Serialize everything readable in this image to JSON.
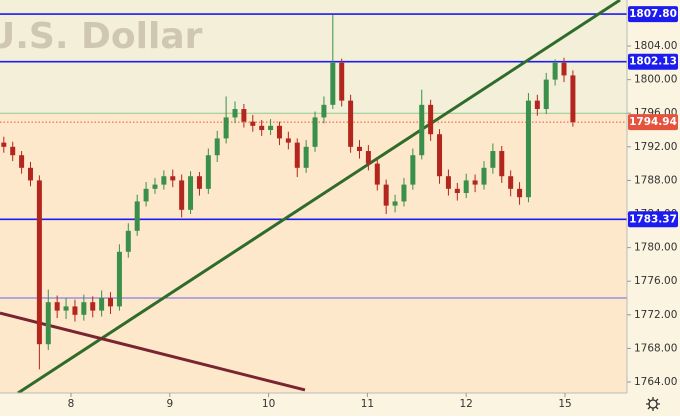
{
  "chart_data": {
    "type": "candlestick",
    "title": "U.S. Dollar",
    "up_color": "#3a8f4a",
    "down_color": "#b3261e",
    "x": [
      0.32,
      0.41,
      0.5,
      0.59,
      0.68,
      0.77,
      0.86,
      0.95,
      1.04,
      1.13,
      1.22,
      1.31,
      1.4,
      1.49,
      1.58,
      1.67,
      1.76,
      1.85,
      1.94,
      2.03,
      2.12,
      2.21,
      2.3,
      2.39,
      2.48,
      2.57,
      2.66,
      2.75,
      2.84,
      2.93,
      3.02,
      3.11,
      3.2,
      3.29,
      3.38,
      3.47,
      3.56,
      3.65,
      3.74,
      3.83,
      3.92,
      4.01,
      4.1,
      4.19,
      4.28,
      4.37,
      4.46,
      4.55,
      4.64,
      4.73,
      4.82,
      4.91,
      5.0,
      5.09,
      5.18,
      5.27,
      5.36,
      5.45,
      5.54,
      5.63,
      5.72,
      5.81,
      5.9,
      5.99,
      6.08
    ],
    "open": [
      1792.5,
      1792.0,
      1791.0,
      1789.5,
      1788.0,
      1768.5,
      1773.5,
      1772.5,
      1773.0,
      1772.0,
      1773.5,
      1772.5,
      1774.0,
      1773.0,
      1779.5,
      1782.0,
      1785.5,
      1787.0,
      1787.5,
      1788.5,
      1788.0,
      1784.5,
      1788.5,
      1787.0,
      1791.0,
      1793.0,
      1795.5,
      1796.5,
      1795.0,
      1794.5,
      1794.0,
      1794.5,
      1793.0,
      1792.5,
      1789.5,
      1792.0,
      1795.5,
      1797.0,
      1802.0,
      1797.5,
      1792.0,
      1791.5,
      1790.0,
      1787.5,
      1785.0,
      1785.5,
      1787.5,
      1791.0,
      1797.0,
      1793.5,
      1788.5,
      1787.0,
      1786.5,
      1788.0,
      1787.5,
      1789.5,
      1791.5,
      1788.5,
      1787.0,
      1786.0,
      1797.5,
      1796.5,
      1800.0,
      1802.0,
      1800.5
    ],
    "high": [
      1793.2,
      1792.6,
      1791.5,
      1790.2,
      1788.6,
      1775.0,
      1774.3,
      1774.0,
      1773.8,
      1774.4,
      1774.2,
      1774.9,
      1774.7,
      1780.4,
      1782.9,
      1786.3,
      1787.8,
      1788.3,
      1789.2,
      1789.3,
      1788.7,
      1789.1,
      1789.0,
      1791.8,
      1793.9,
      1798.0,
      1797.4,
      1797.1,
      1795.8,
      1795.2,
      1795.3,
      1795.0,
      1793.8,
      1793.0,
      1792.8,
      1796.2,
      1798.0,
      1807.7,
      1802.5,
      1798.2,
      1792.8,
      1792.2,
      1790.6,
      1788.1,
      1786.3,
      1788.3,
      1791.8,
      1798.8,
      1797.6,
      1794.1,
      1789.3,
      1787.7,
      1788.8,
      1788.7,
      1790.3,
      1792.4,
      1792.1,
      1789.2,
      1787.8,
      1798.4,
      1798.2,
      1800.8,
      1802.4,
      1802.6,
      1801.1
    ],
    "low": [
      1791.3,
      1790.3,
      1788.8,
      1787.3,
      1765.5,
      1767.8,
      1771.6,
      1771.5,
      1771.2,
      1771.3,
      1771.7,
      1771.8,
      1772.1,
      1772.5,
      1778.8,
      1781.4,
      1784.9,
      1786.4,
      1786.9,
      1787.2,
      1783.6,
      1784.0,
      1786.2,
      1786.4,
      1790.2,
      1792.4,
      1794.8,
      1794.3,
      1793.8,
      1793.3,
      1793.4,
      1792.2,
      1791.7,
      1788.4,
      1788.9,
      1791.4,
      1794.8,
      1796.5,
      1796.8,
      1791.3,
      1790.6,
      1789.2,
      1786.8,
      1784.0,
      1784.2,
      1784.9,
      1786.9,
      1790.5,
      1792.7,
      1787.6,
      1786.2,
      1785.6,
      1785.9,
      1786.6,
      1786.9,
      1788.8,
      1787.7,
      1786.1,
      1785.1,
      1785.4,
      1795.7,
      1795.9,
      1799.3,
      1799.7,
      1794.4
    ],
    "close": [
      1792.0,
      1791.0,
      1789.5,
      1788.0,
      1768.5,
      1773.5,
      1772.5,
      1773.0,
      1772.0,
      1773.5,
      1772.5,
      1774.0,
      1773.0,
      1779.5,
      1782.0,
      1785.5,
      1787.0,
      1787.5,
      1788.5,
      1788.0,
      1784.5,
      1788.5,
      1787.0,
      1791.0,
      1793.0,
      1795.5,
      1796.5,
      1795.0,
      1794.5,
      1794.0,
      1794.5,
      1793.0,
      1792.5,
      1789.5,
      1792.0,
      1795.5,
      1797.0,
      1802.0,
      1797.5,
      1792.0,
      1791.5,
      1790.0,
      1787.5,
      1785.0,
      1785.5,
      1787.5,
      1791.0,
      1797.0,
      1793.5,
      1788.5,
      1787.0,
      1786.5,
      1788.0,
      1787.5,
      1789.5,
      1791.5,
      1788.5,
      1787.0,
      1786.0,
      1797.5,
      1796.5,
      1800.0,
      1802.0,
      1800.5,
      1794.94
    ],
    "xlim": [
      0.2814,
      6.6275
    ],
    "xticks": [
      {
        "value": 1,
        "label": "8"
      },
      {
        "value": 2,
        "label": "9"
      },
      {
        "value": 3,
        "label": "10"
      },
      {
        "value": 4,
        "label": "11"
      },
      {
        "value": 5,
        "label": "12"
      },
      {
        "value": 6,
        "label": "15"
      }
    ],
    "ylim": [
      1762.69,
      1809.48
    ],
    "yticks": [
      {
        "value": 1764,
        "label": "1764.00"
      },
      {
        "value": 1768,
        "label": "1768.00"
      },
      {
        "value": 1772,
        "label": "1772.00"
      },
      {
        "value": 1776,
        "label": "1776.00"
      },
      {
        "value": 1780,
        "label": "1780.00"
      },
      {
        "value": 1784,
        "label": "1784.00"
      },
      {
        "value": 1788,
        "label": "1788.00"
      },
      {
        "value": 1792,
        "label": "1792.00"
      },
      {
        "value": 1796,
        "label": "1796.00"
      },
      {
        "value": 1800,
        "label": "1800.00"
      },
      {
        "value": 1804,
        "label": "1804.00"
      }
    ],
    "levels": [
      {
        "value": 1807.8,
        "label": "1807.80",
        "color": "#1c1cf0",
        "width": 1.6
      },
      {
        "value": 1802.13,
        "color": "#1c1cf0",
        "width": 1.6
      },
      {
        "value": 1783.37,
        "color": "#1c1cf0",
        "width": 1.6
      },
      {
        "value": 1774,
        "color": "#3a3af0",
        "width": 0.8
      },
      {
        "value": 1796,
        "color": "#8fc98f",
        "width": 1
      },
      {
        "value": 1794.94,
        "color": "#e5533d",
        "width": 1,
        "dotted": true
      }
    ],
    "trend_lines": [
      {
        "color": "#2f6b2a",
        "points": [
          [
            0.4636,
            1762.69
          ],
          [
            6.557,
            1809.48
          ]
        ]
      },
      {
        "color": "#7a2430",
        "points": [
          [
            0.2814,
            1772.21
          ],
          [
            3.368,
            1763.05
          ]
        ]
      }
    ]
  }
}
